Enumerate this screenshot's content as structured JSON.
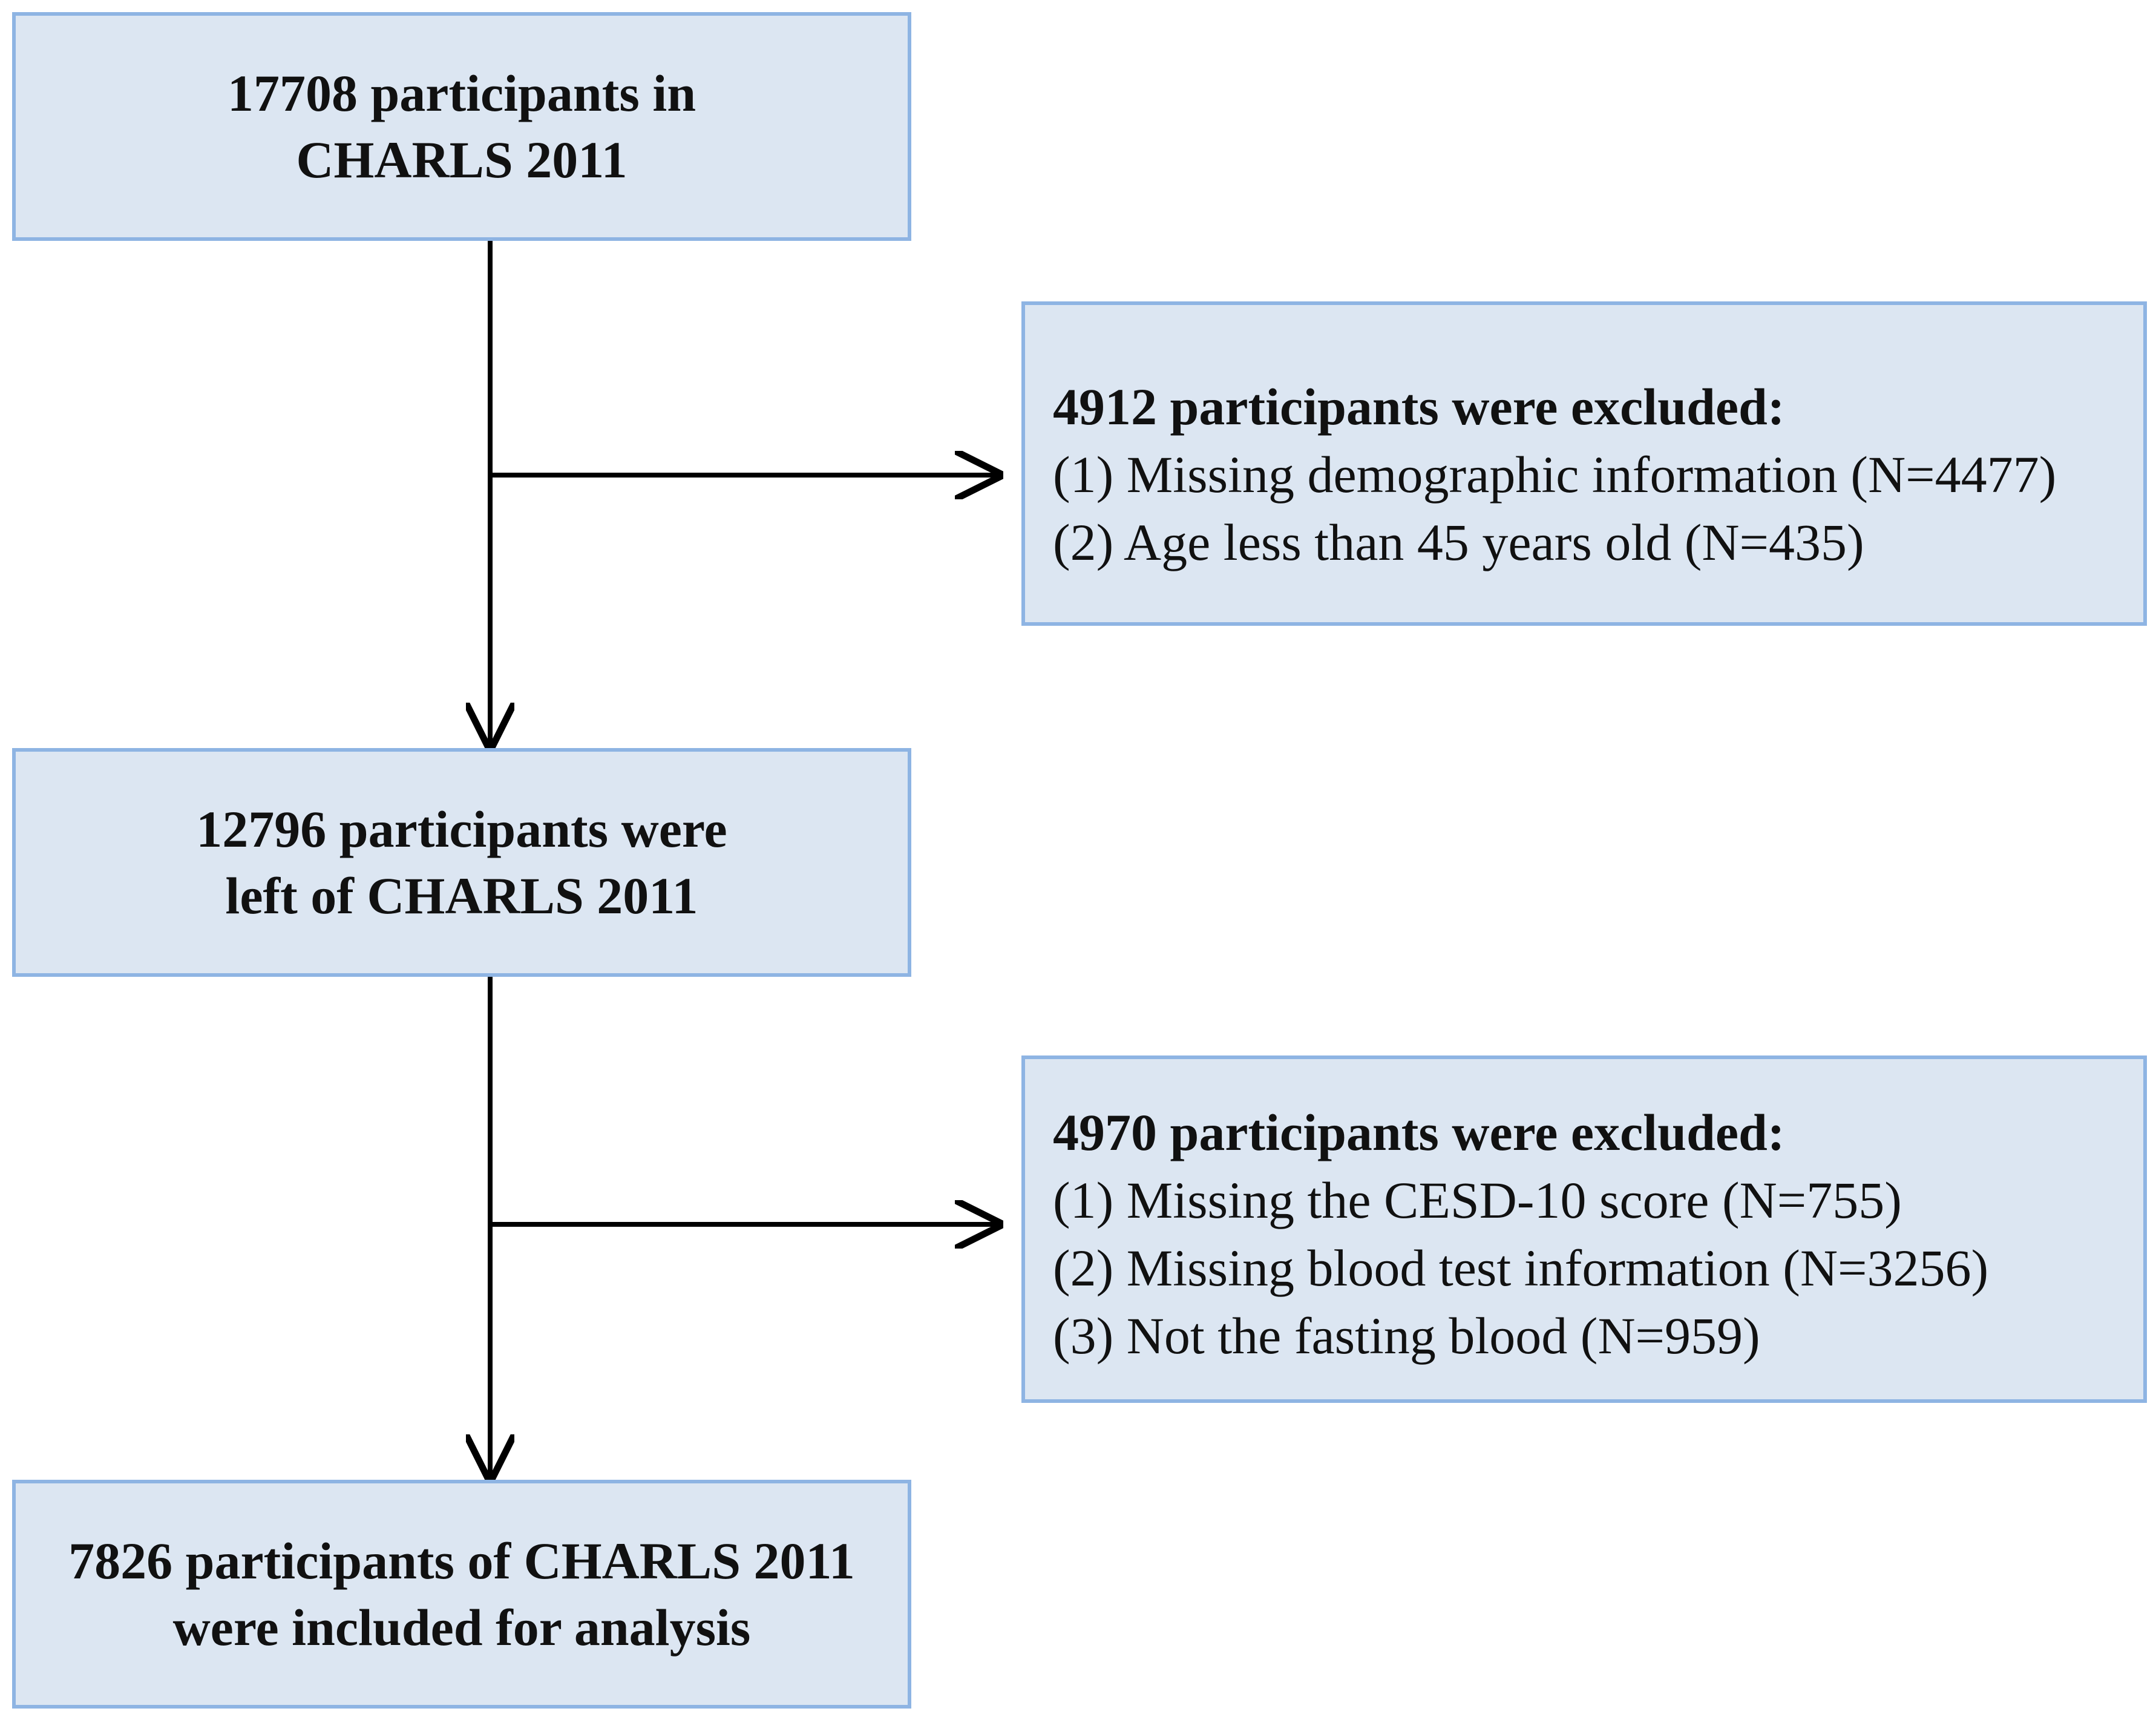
{
  "boxes": {
    "start": {
      "lines": [
        "17708 participants in",
        "CHARLS 2011"
      ]
    },
    "exclusion1": {
      "title": "4912 participants were excluded:",
      "items": [
        "(1) Missing demographic information (N=4477)",
        "(2) Age less than 45 years old (N=435)"
      ]
    },
    "middle": {
      "lines": [
        "12796 participants were",
        "left of CHARLS 2011"
      ]
    },
    "exclusion2": {
      "title": "4970 participants were excluded:",
      "items": [
        "(1) Missing the CESD-10 score (N=755)",
        "(2) Missing blood test information (N=3256)",
        "(3) Not the fasting blood (N=959)"
      ]
    },
    "final": {
      "lines": [
        "7826 participants of CHARLS 2011",
        "were included for analysis"
      ]
    }
  },
  "colors": {
    "box_fill": "#dce6f2",
    "box_border": "#8eb4e3",
    "arrow": "#000000"
  }
}
